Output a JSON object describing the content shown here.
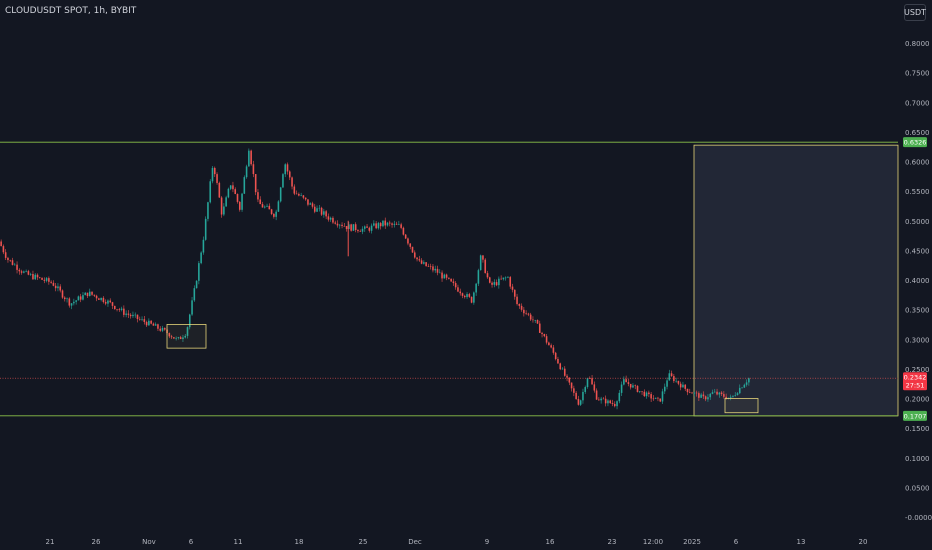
{
  "header": {
    "symbol": "CLOUDUSDT SPOT, 1h, BYBIT",
    "unit_button": "USDT"
  },
  "colors": {
    "background": "#131722",
    "up": "#26a69a",
    "down": "#ef5350",
    "zone_line": "#8bc34a",
    "box": "#e5d47a",
    "price_line": "#ef5350"
  },
  "chart_data": {
    "type": "candlestick",
    "ylim": [
      0,
      0.85
    ],
    "y_ticks": [
      "0.8000",
      "0.7500",
      "0.7000",
      "0.6500",
      "0.6000",
      "0.5500",
      "0.5000",
      "0.4500",
      "0.4000",
      "0.3500",
      "0.3000",
      "0.2500",
      "0.2000",
      "0.1500",
      "0.1000",
      "0.0500",
      "-0.0000"
    ],
    "x_ticks": [
      "21",
      "26",
      "Nov",
      "6",
      "11",
      "18",
      "25",
      "Dec",
      "9",
      "16",
      "23",
      "12:00",
      "2025",
      "6",
      "13",
      "20"
    ],
    "price_path": [
      [
        "Oct 16",
        0.465
      ],
      [
        "Oct 17",
        0.435
      ],
      [
        "Oct 19",
        0.41
      ],
      [
        "Oct 22",
        0.395
      ],
      [
        "Oct 24",
        0.36
      ],
      [
        "Oct 26",
        0.378
      ],
      [
        "Oct 28",
        0.365
      ],
      [
        "Oct 30",
        0.345
      ],
      [
        "Nov 2",
        0.325
      ],
      [
        "Nov 4",
        0.31
      ],
      [
        "Nov 5",
        0.298
      ],
      [
        "Nov 6",
        0.312
      ],
      [
        "Nov 7",
        0.39
      ],
      [
        "Nov 8",
        0.48
      ],
      [
        "Nov 9",
        0.6
      ],
      [
        "Nov 10",
        0.51
      ],
      [
        "Nov 11",
        0.565
      ],
      [
        "Nov 12",
        0.52
      ],
      [
        "Nov 13",
        0.625
      ],
      [
        "Nov 14",
        0.53
      ],
      [
        "Nov 16",
        0.51
      ],
      [
        "Nov 17",
        0.6
      ],
      [
        "Nov 18",
        0.55
      ],
      [
        "Nov 20",
        0.525
      ],
      [
        "Nov 22",
        0.505
      ],
      [
        "Nov 24",
        0.49
      ],
      [
        "Nov 26",
        0.485
      ],
      [
        "Nov 28",
        0.495
      ],
      [
        "Nov 30",
        0.49
      ],
      [
        "Dec 2",
        0.43
      ],
      [
        "Dec 4",
        0.415
      ],
      [
        "Dec 6",
        0.39
      ],
      [
        "Dec 8",
        0.365
      ],
      [
        "Dec 9",
        0.44
      ],
      [
        "Dec 10",
        0.39
      ],
      [
        "Dec 12",
        0.405
      ],
      [
        "Dec 13",
        0.36
      ],
      [
        "Dec 15",
        0.33
      ],
      [
        "Dec 17",
        0.28
      ],
      [
        "Dec 19",
        0.22
      ],
      [
        "Dec 20",
        0.19
      ],
      [
        "Dec 21",
        0.24
      ],
      [
        "Dec 22",
        0.2
      ],
      [
        "Dec 24",
        0.19
      ],
      [
        "Dec 25",
        0.23
      ],
      [
        "Dec 27",
        0.21
      ],
      [
        "Dec 29",
        0.195
      ],
      [
        "Dec 30",
        0.24
      ],
      [
        "Jan 1",
        0.215
      ],
      [
        "Jan 3",
        0.2
      ],
      [
        "Jan 4",
        0.21
      ],
      [
        "Jan 6",
        0.2
      ],
      [
        "Jan 7",
        0.218
      ],
      [
        "Jan 8",
        0.234
      ]
    ],
    "wicks": [
      {
        "date": "Nov 24",
        "high": 0.5,
        "low": 0.44
      }
    ],
    "horizontal_lines": [
      {
        "price": 0.6326,
        "label": "0.6326"
      },
      {
        "price": 0.1707,
        "label": "0.1707"
      }
    ],
    "current_price": {
      "price": 0.2342,
      "label": "0.2342",
      "countdown": "27:51"
    },
    "range_box": {
      "from": "Jan 1",
      "to": "Jan 27",
      "top": 0.6276,
      "bottom": 0.1707
    },
    "highlight_boxes": [
      {
        "from": "Nov 3",
        "to": "Nov 6",
        "top": 0.325,
        "bottom": 0.285
      },
      {
        "from": "Jan 5",
        "to": "Jan 9",
        "top": 0.2,
        "bottom": 0.176
      }
    ]
  }
}
